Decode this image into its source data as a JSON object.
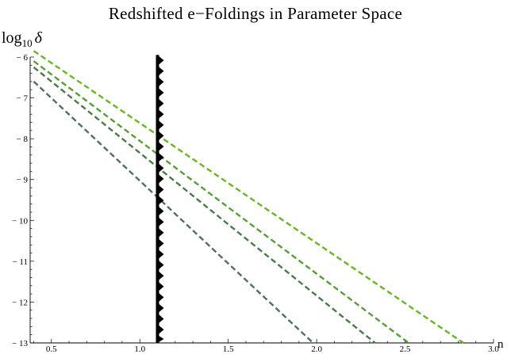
{
  "chart_data": {
    "type": "line",
    "title": "Redshifted e−Foldings in Parameter Space",
    "xlabel": "n",
    "ylabel": {
      "base": "log",
      "subscript": "10",
      "symbol": "δ"
    },
    "xlim": [
      0.38,
      3.0
    ],
    "ylim": [
      -13.0,
      -6.0
    ],
    "x_ticks": [
      {
        "value": 0.5,
        "label": "0.5"
      },
      {
        "value": 1.0,
        "label": "1.0"
      },
      {
        "value": 1.5,
        "label": "1.5"
      },
      {
        "value": 2.0,
        "label": "2.0"
      },
      {
        "value": 2.5,
        "label": "2.5"
      },
      {
        "value": 3.0,
        "label": "3.0"
      }
    ],
    "y_ticks": [
      {
        "value": -6,
        "label": "− 6"
      },
      {
        "value": -7,
        "label": "− 7"
      },
      {
        "value": -8,
        "label": "− 8"
      },
      {
        "value": -9,
        "label": "− 9"
      },
      {
        "value": -10,
        "label": "− 10"
      },
      {
        "value": -11,
        "label": "− 11"
      },
      {
        "value": -12,
        "label": "− 12"
      },
      {
        "value": -13,
        "label": "− 13"
      }
    ],
    "grid": false,
    "series": [
      {
        "color": "#66b81e",
        "style": "dashed",
        "points": [
          [
            0.4,
            -5.85
          ],
          [
            2.83,
            -13.0
          ]
        ]
      },
      {
        "color": "#55a032",
        "style": "dashed",
        "points": [
          [
            0.4,
            -6.1
          ],
          [
            2.52,
            -13.0
          ]
        ]
      },
      {
        "color": "#4a7a48",
        "style": "dashed",
        "points": [
          [
            0.4,
            -6.25
          ],
          [
            2.33,
            -13.0
          ]
        ]
      },
      {
        "color": "#4f6f62",
        "style": "dashed",
        "points": [
          [
            0.4,
            -6.6
          ],
          [
            1.98,
            -13.0
          ]
        ]
      }
    ],
    "vertical_boundary": {
      "x": 1.1,
      "y_range": [
        -13.0,
        -5.95
      ],
      "color": "#000000",
      "style": "sawtooth"
    }
  }
}
